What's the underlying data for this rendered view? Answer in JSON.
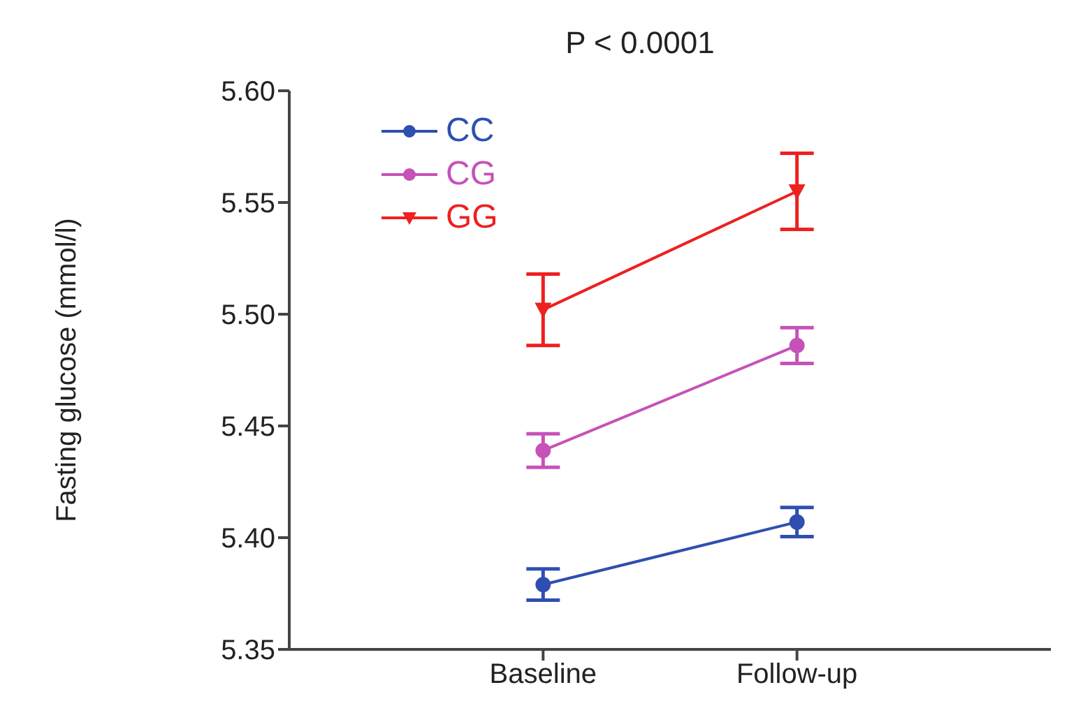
{
  "chart_data": {
    "type": "line",
    "title": "P < 0.0001",
    "ylabel": "Fasting glucose (mmol/l)",
    "categories": [
      "Baseline",
      "Follow-up"
    ],
    "series": [
      {
        "name": "CC",
        "color": "#2e4fb0",
        "values": [
          5.379,
          5.407
        ],
        "errors": [
          0.007,
          0.0065
        ],
        "marker": "circle"
      },
      {
        "name": "CG",
        "color": "#c652b8",
        "values": [
          5.439,
          5.486
        ],
        "errors": [
          0.0075,
          0.008
        ],
        "marker": "circle"
      },
      {
        "name": "GG",
        "color": "#ee2020",
        "values": [
          5.502,
          5.555
        ],
        "errors": [
          0.016,
          0.017
        ],
        "marker": "triangle"
      }
    ],
    "ylim": [
      5.35,
      5.6
    ],
    "yticks": [
      5.35,
      {
        "value": 5.4,
        "label": "5.40"
      },
      5.45,
      {
        "value": 5.5,
        "label": "5.50"
      },
      5.55,
      {
        "value": 5.6,
        "label": "5.60"
      }
    ],
    "legend": "top left",
    "grid": false
  }
}
